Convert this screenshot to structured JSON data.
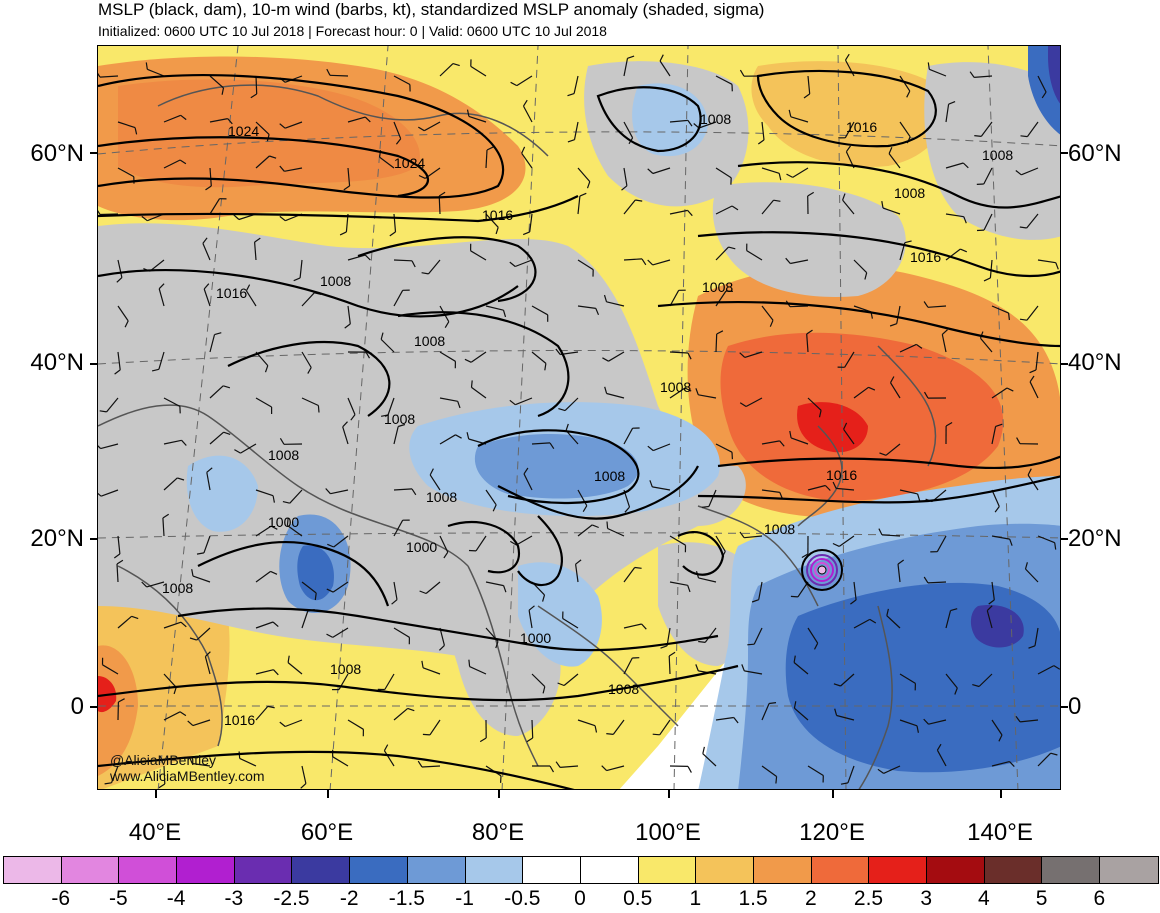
{
  "title": {
    "line1": "MSLP (black, dam), 10-m wind (barbs, kt), standardized MSLP anomaly (shaded, sigma)",
    "line2": "Initialized: 0600 UTC 10 Jul 2018 | Forecast hour: 0 | Valid: 0600 UTC 10 Jul 2018"
  },
  "latitude_labels": [
    "60°N",
    "40°N",
    "20°N",
    "0"
  ],
  "longitude_labels": [
    "40°E",
    "60°E",
    "80°E",
    "100°E",
    "120°E",
    "140°E"
  ],
  "contour_labels": [
    "1024",
    "1024",
    "1016",
    "1016",
    "1008",
    "1008",
    "1016",
    "1008",
    "1008",
    "1016",
    "1008",
    "1008",
    "1008",
    "1008",
    "1008",
    "1000",
    "1000",
    "1008",
    "1008",
    "1000",
    "1008",
    "1016",
    "1008",
    "1008",
    "1016",
    "1008"
  ],
  "watermark": {
    "handle": "@AliciaMBentley",
    "url": "www.AliciaMBentley.com"
  },
  "colorbar": {
    "labels": [
      "-6",
      "-5",
      "-4",
      "-3",
      "-2.5",
      "-2",
      "-1.5",
      "-1",
      "-0.5",
      "0",
      "0.5",
      "1",
      "1.5",
      "2",
      "2.5",
      "3",
      "4",
      "5",
      "6"
    ],
    "colors": [
      "#ecb8e8",
      "#e286e0",
      "#d04fd8",
      "#b11fd0",
      "#6a2db0",
      "#3b3aa0",
      "#3a6cc0",
      "#6e9ad6",
      "#a6c8ea",
      "#ffffff",
      "#ffffff",
      "#f9e86a",
      "#f4c35a",
      "#f19a4a",
      "#ef6a3a",
      "#e5201a",
      "#a40c10",
      "#6a2e2a",
      "#767070",
      "#a9a2a2"
    ]
  },
  "colors": {
    "land_gray": "#c8c8c8",
    "anomaly_pos_light": "#f9e86a",
    "anomaly_pos_mid": "#f4c35a",
    "anomaly_pos_strong": "#f19a4a",
    "anomaly_pos_vstrong": "#ef6a3a",
    "anomaly_neg_light": "#a6c8ea",
    "anomaly_neg_mid": "#6e9ad6",
    "anomaly_neg_strong": "#3a6cc0",
    "typhoon_center": "#b11fd0"
  }
}
